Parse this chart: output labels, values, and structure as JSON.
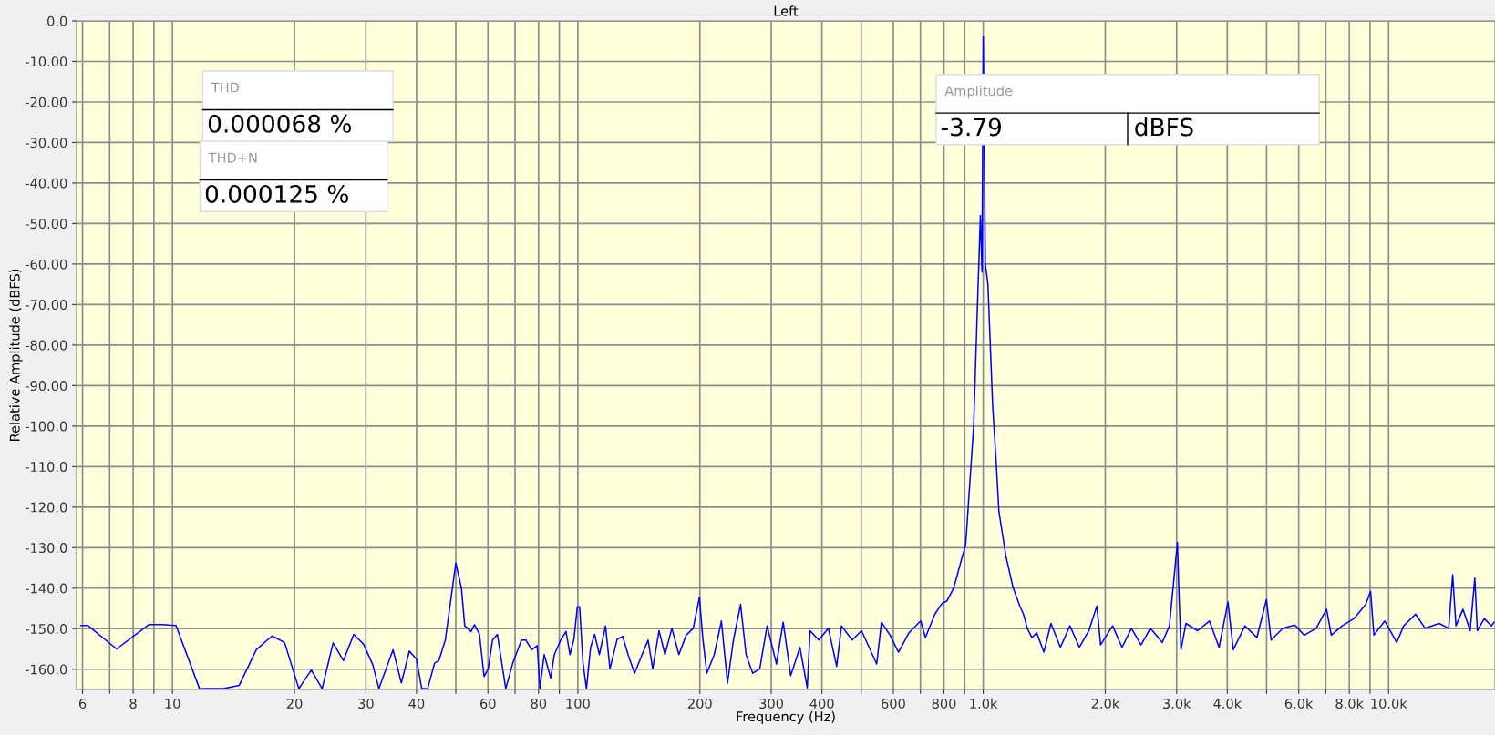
{
  "chart_data": {
    "type": "line",
    "title": "Left",
    "xlabel": "Frequency (Hz)",
    "ylabel": "Relative Amplitude (dBFS)",
    "log": "x",
    "grid": true,
    "marker": "none",
    "line_style": "solid",
    "xlim": [
      5.8,
      18300
    ],
    "ylim": [
      -165,
      0
    ],
    "xticks": [
      6,
      {
        "value": 7,
        "label": null
      },
      8,
      {
        "value": 9,
        "label": null
      },
      10,
      20,
      30,
      40,
      {
        "value": 50,
        "label": null
      },
      60,
      {
        "value": 70,
        "label": null
      },
      80,
      {
        "value": 90,
        "label": null
      },
      100,
      200,
      300,
      400,
      {
        "value": 500,
        "label": null
      },
      600,
      {
        "value": 700,
        "label": null
      },
      800,
      {
        "value": 900,
        "label": null
      },
      {
        "value": 1000,
        "label": "1.0k"
      },
      {
        "value": 2000,
        "label": "2.0k"
      },
      {
        "value": 3000,
        "label": "3.0k"
      },
      {
        "value": 4000,
        "label": "4.0k"
      },
      {
        "value": 5000,
        "label": null
      },
      {
        "value": 6000,
        "label": "6.0k"
      },
      {
        "value": 7000,
        "label": null
      },
      {
        "value": 8000,
        "label": "8.0k"
      },
      {
        "value": 9000,
        "label": null
      },
      {
        "value": 10000,
        "label": "10.0k"
      }
    ],
    "yticks": [
      {
        "value": 0,
        "label": "0.0"
      },
      {
        "value": -10,
        "label": "-10.00"
      },
      {
        "value": -20,
        "label": "-20.00"
      },
      {
        "value": -30,
        "label": "-30.00"
      },
      {
        "value": -40,
        "label": "-40.00"
      },
      {
        "value": -50,
        "label": "-50.00"
      },
      {
        "value": -60,
        "label": "-60.00"
      },
      {
        "value": -70,
        "label": "-70.00"
      },
      {
        "value": -80,
        "label": "-80.00"
      },
      {
        "value": -90,
        "label": "-90.00"
      },
      {
        "value": -100,
        "label": "-100.0"
      },
      {
        "value": -110,
        "label": "-110.0"
      },
      {
        "value": -120,
        "label": "-120.0"
      },
      {
        "value": -130,
        "label": "-130.0"
      },
      {
        "value": -140,
        "label": "-140.0"
      },
      {
        "value": -150,
        "label": "-150.0"
      },
      {
        "value": -160,
        "label": "-160.0"
      }
    ],
    "annotations": [
      "THD",
      "0.000068 %",
      "THD+N",
      "0.000125 %",
      "Amplitude",
      "-3.79",
      "dBFS"
    ],
    "series": [
      {
        "color": "#0000ff",
        "x": [
          5.94,
          6.18,
          7.28,
          8.74,
          9.4,
          10.2,
          11.66,
          13.35,
          14.6,
          16.1,
          17.6,
          18.9,
          20.5,
          22.0,
          23.4,
          24.9,
          26.4,
          28.0,
          29.6,
          31.2,
          32.3,
          35.0,
          36.7,
          38.4,
          40.0,
          41.2,
          42.6,
          44.3,
          45.4,
          47.1,
          50.0,
          51.6,
          52.6,
          54.5,
          55.6,
          57.2,
          58.7,
          60.1,
          61.6,
          63.3,
          66.4,
          69.1,
          72.6,
          74.4,
          77.0,
          79.4,
          80.6,
          82.6,
          85.7,
          87.5,
          90.7,
          93.5,
          95.6,
          97.8,
          99.7,
          101,
          103,
          105,
          107.5,
          110,
          113,
          117,
          120,
          125,
          129,
          133,
          138,
          144,
          149,
          153,
          158.6,
          164,
          170.6,
          177.5,
          185,
          192.6,
          199.5,
          203,
          208,
          217,
          226,
          234,
          242,
          252,
          260,
          270,
          281,
          293,
          309,
          321,
          335,
          353,
          368,
          374,
          393,
          415,
          435,
          447,
          475,
          501,
          546,
          561,
          589,
          618,
          656,
          701,
          720,
          760,
          791,
          813,
          846,
          881,
          905,
          947,
          968,
          984,
          993,
          1000,
          1012,
          1027,
          1055,
          1078,
          1093,
          1138,
          1185,
          1233,
          1257,
          1284,
          1319,
          1355,
          1411,
          1469,
          1550,
          1636,
          1727,
          1822,
          1907,
          1948,
          2085,
          2200,
          2321,
          2450,
          2584,
          2765,
          2880,
          3013,
          3038,
          3075,
          3163,
          3380,
          3614,
          3818,
          4016,
          4138,
          4422,
          4733,
          4996,
          5130,
          5486,
          5869,
          6194,
          6625,
          7030,
          7221,
          7683,
          8214,
          8784,
          9026,
          9198,
          9786,
          10470,
          10900,
          11660,
          12300,
          13330,
          14070,
          14390,
          14660,
          15260,
          15890,
          16320,
          16550,
          17220,
          17930,
          18200
        ],
        "values": [
          -149.2,
          -149.2,
          -155,
          -149,
          -149,
          -149.2,
          -164.8,
          -164.8,
          -164,
          -155.2,
          -151.8,
          -153.4,
          -164.8,
          -160.2,
          -164.8,
          -153.5,
          -157.9,
          -151.4,
          -153.8,
          -158.9,
          -164.8,
          -155.2,
          -163.4,
          -155.5,
          -157.6,
          -164.8,
          -164.8,
          -158.5,
          -157.9,
          -152.8,
          -133.8,
          -139.9,
          -149.3,
          -150.7,
          -149,
          -151.4,
          -161.8,
          -159.9,
          -152.8,
          -151.4,
          -164.8,
          -158.5,
          -152.8,
          -152.8,
          -155.2,
          -154.2,
          -164.8,
          -156.4,
          -162.2,
          -156.4,
          -152.8,
          -150.7,
          -156.4,
          -152.6,
          -144.6,
          -144.6,
          -158.7,
          -164.8,
          -154.6,
          -151.4,
          -156.4,
          -149.3,
          -159.9,
          -152.6,
          -151.9,
          -156.4,
          -161,
          -156.4,
          -152.8,
          -159.9,
          -150.5,
          -156.4,
          -149.9,
          -156.4,
          -151.6,
          -149.9,
          -142.2,
          -151.6,
          -161,
          -156.4,
          -148.1,
          -163.4,
          -152.8,
          -144,
          -156.4,
          -161,
          -159.9,
          -149.3,
          -158.7,
          -148.4,
          -161.6,
          -154.6,
          -164.6,
          -150.5,
          -152.8,
          -149.9,
          -159.3,
          -149.3,
          -152.8,
          -150.5,
          -158.7,
          -148.4,
          -151.6,
          -155.8,
          -151,
          -148.1,
          -152.2,
          -146.4,
          -143.8,
          -143.2,
          -139.9,
          -133.4,
          -129.3,
          -100,
          -70,
          -48,
          -62,
          -3.79,
          -60,
          -65,
          -95,
          -110,
          -121,
          -132.2,
          -139.9,
          -144.6,
          -146.4,
          -149.9,
          -152.2,
          -151,
          -155.8,
          -148.7,
          -154.6,
          -149.3,
          -154.6,
          -150.5,
          -144.4,
          -154,
          -149.3,
          -154.6,
          -149.9,
          -154,
          -149.9,
          -153.4,
          -149.3,
          -128.7,
          -140.5,
          -155.2,
          -148.7,
          -150.5,
          -148.1,
          -154.6,
          -143.4,
          -155.2,
          -149.3,
          -152.2,
          -142.8,
          -152.8,
          -149.9,
          -149.1,
          -151.6,
          -149.9,
          -145.2,
          -151.6,
          -149.3,
          -147.5,
          -144,
          -140.8,
          -151.6,
          -148.1,
          -153.4,
          -149.3,
          -146.4,
          -149.9,
          -148.7,
          -149.9,
          -136.7,
          -149.3,
          -145.2,
          -150.5,
          -137.5,
          -150.5,
          -147.5,
          -149.3,
          -148.4
        ]
      }
    ]
  }
}
